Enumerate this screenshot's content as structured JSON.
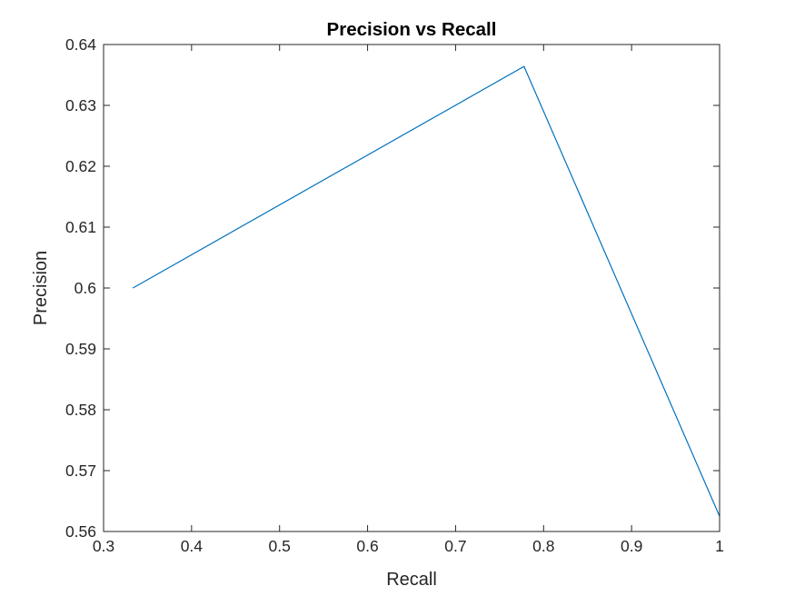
{
  "chart_data": {
    "type": "line",
    "title": "Precision vs Recall",
    "xlabel": "Recall",
    "ylabel": "Precision",
    "xlim": [
      0.3,
      1.0
    ],
    "ylim": [
      0.56,
      0.64
    ],
    "xticks": [
      0.3,
      0.4,
      0.5,
      0.6,
      0.7,
      0.8,
      0.9,
      1.0
    ],
    "xtick_labels": [
      "0.3",
      "0.4",
      "0.5",
      "0.6",
      "0.7",
      "0.8",
      "0.9",
      "1"
    ],
    "yticks": [
      0.56,
      0.57,
      0.58,
      0.59,
      0.6,
      0.61,
      0.62,
      0.63,
      0.64
    ],
    "ytick_labels": [
      "0.56",
      "0.57",
      "0.58",
      "0.59",
      "0.6",
      "0.61",
      "0.62",
      "0.63",
      "0.64"
    ],
    "grid": false,
    "legend": false,
    "series": [
      {
        "x": [
          0.3333,
          0.7778,
          1.0
        ],
        "y": [
          0.6,
          0.6364,
          0.5625
        ],
        "color": "#0072BD"
      }
    ]
  }
}
